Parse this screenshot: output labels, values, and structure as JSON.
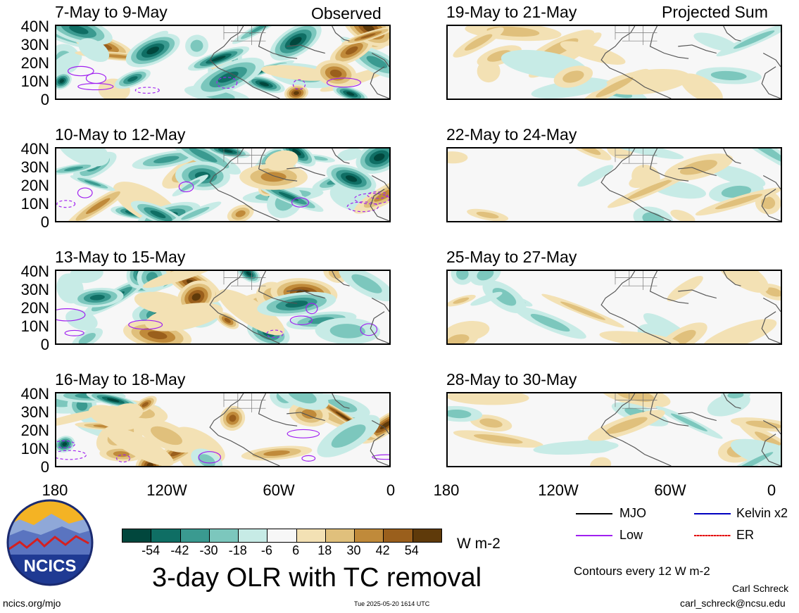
{
  "chart_data": {
    "type": "heatmap",
    "title": "3-day OLR with TC removal",
    "subtitle_observed": "Observed",
    "subtitle_projected": "Projected Sum",
    "y_ticks": [
      "40N",
      "30N",
      "20N",
      "10N",
      "0"
    ],
    "x_ticks": [
      "180",
      "120W",
      "60W",
      "0"
    ],
    "colorbar": {
      "ticks": [
        "-54",
        "-42",
        "-30",
        "-18",
        "-6",
        "6",
        "18",
        "30",
        "42",
        "54"
      ],
      "unit": "W m-2",
      "colors": [
        "#01473d",
        "#0f6e64",
        "#3a9a90",
        "#7cc7bd",
        "#c7ebe6",
        "#f7f7f7",
        "#f3e1b4",
        "#e0c07c",
        "#c08a3a",
        "#9a5f1c",
        "#5f3a0a"
      ]
    },
    "panels_observed": [
      {
        "label": "7-May to 9-May"
      },
      {
        "label": "10-May to 12-May"
      },
      {
        "label": "13-May to 15-May"
      },
      {
        "label": "16-May to 18-May"
      }
    ],
    "panels_projected": [
      {
        "label": "19-May to 21-May"
      },
      {
        "label": "22-May to 24-May"
      },
      {
        "label": "25-May to 27-May"
      },
      {
        "label": "28-May to 30-May"
      }
    ],
    "legend": [
      {
        "name": "MJO",
        "color": "#000000"
      },
      {
        "name": "Kelvin x2",
        "color": "#0000c0"
      },
      {
        "name": "Low",
        "color": "#a020f0"
      },
      {
        "name": "ER",
        "color": "#e00000"
      }
    ],
    "contour_note": "Contours every 12 W m-2"
  },
  "footer": {
    "logo_text": "NCICS",
    "url": "ncics.org/mjo",
    "timestamp": "Tue 2025-05-20 1614 UTC",
    "author": "Carl Schreck",
    "email": "carl_schreck@ncsu.edu"
  }
}
